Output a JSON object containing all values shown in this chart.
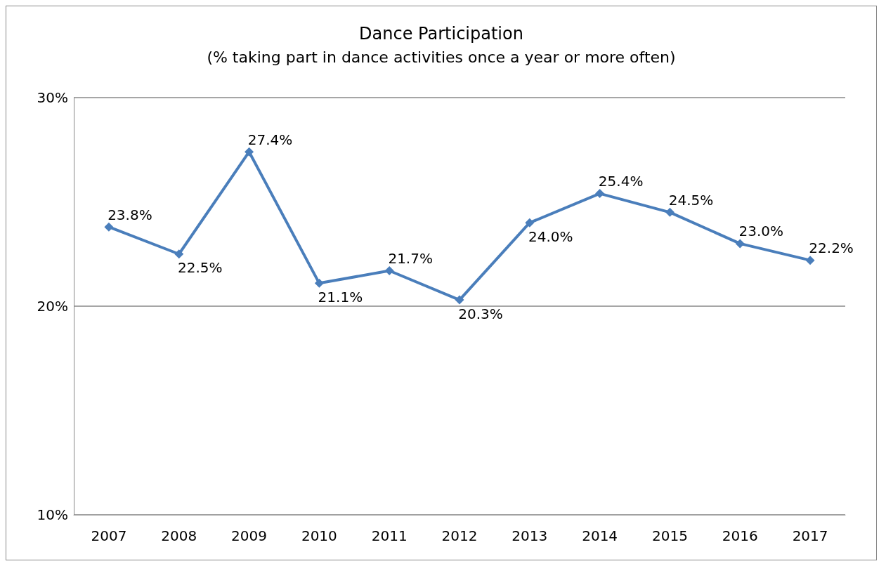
{
  "chart_data": {
    "type": "line",
    "title": "Dance Participation",
    "subtitle": "(% taking part in dance activities once a year or more often)",
    "categories": [
      "2007",
      "2008",
      "2009",
      "2010",
      "2011",
      "2012",
      "2013",
      "2014",
      "2015",
      "2016",
      "2017"
    ],
    "series": [
      {
        "color": "#4a7ebb",
        "values": [
          23.8,
          22.5,
          27.4,
          21.1,
          21.7,
          20.3,
          24.0,
          25.4,
          24.5,
          23.0,
          22.2
        ],
        "value_labels": [
          "23.8%",
          "22.5%",
          "27.4%",
          "21.1%",
          "21.7%",
          "20.3%",
          "24.0%",
          "25.4%",
          "24.5%",
          "23.0%",
          "22.2%"
        ]
      }
    ],
    "ylim": [
      10,
      30
    ],
    "yticks": [
      {
        "value": 10,
        "label": "10%"
      },
      {
        "value": 20,
        "label": "20%"
      },
      {
        "value": 30,
        "label": "30%"
      }
    ],
    "grid": "y",
    "marker": "diamond",
    "line_style": "solid"
  }
}
